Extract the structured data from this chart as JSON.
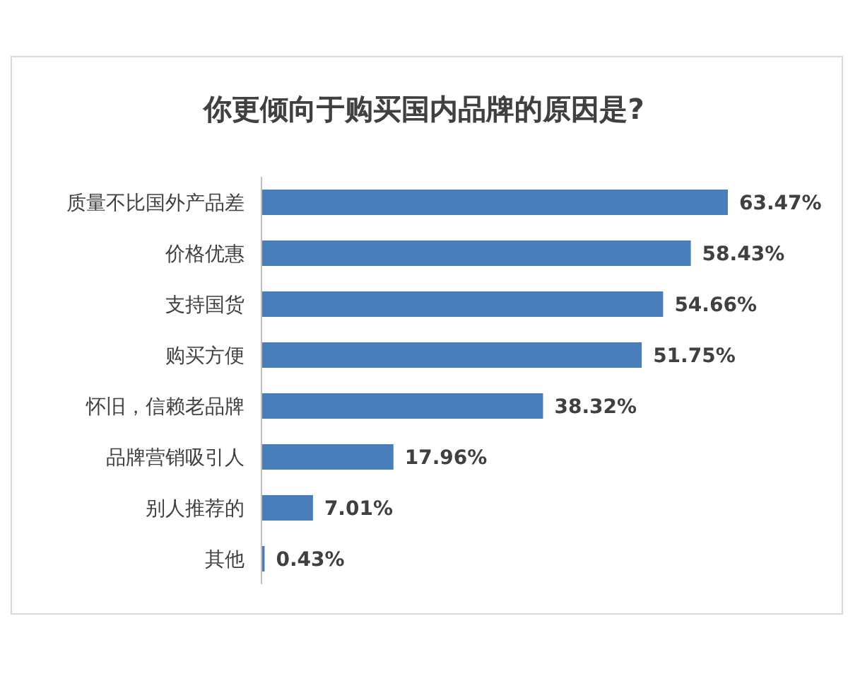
{
  "chart_data": {
    "type": "bar",
    "orientation": "horizontal",
    "title": "你更倾向于购买国内品牌的原因是?",
    "categories": [
      "质量不比国外产品差",
      "价格优惠",
      "支持国货",
      "购买方便",
      "怀旧，信赖老品牌",
      "品牌营销吸引人",
      "别人推荐的",
      "其他"
    ],
    "values": [
      63.47,
      58.43,
      54.66,
      51.75,
      38.32,
      17.96,
      7.01,
      0.43
    ],
    "color": "#4a7ebb",
    "value_labels": [
      "63.47%",
      "58.43%",
      "54.66%",
      "51.75%",
      "38.32%",
      "17.96%",
      "7.01%",
      "0.43%"
    ]
  }
}
